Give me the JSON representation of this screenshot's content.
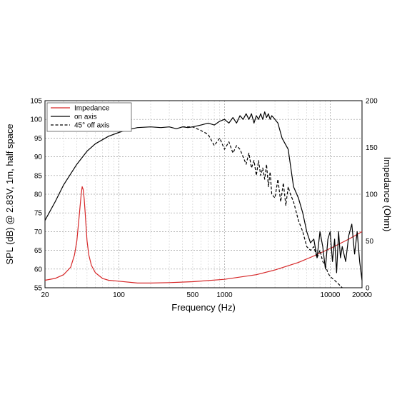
{
  "chart_data": {
    "type": "line",
    "xlabel": "Frequency (Hz)",
    "ylabel": "SPL (dB) @ 2.83V, 1m, half space",
    "y2label": "Impedance (Ohm)",
    "x_scale": "log",
    "xlim": [
      20,
      20000
    ],
    "ylim": [
      55,
      105
    ],
    "y2lim": [
      0,
      200
    ],
    "grid": true,
    "legend_position": "top-left",
    "x_ticks": [
      {
        "value": 20,
        "label": "20"
      },
      {
        "value": 100,
        "label": "100"
      },
      {
        "value": 500,
        "label": "500"
      },
      {
        "value": 1000,
        "label": "1000"
      },
      {
        "value": 10000,
        "label": "10000"
      },
      {
        "value": 20000,
        "label": "20000"
      }
    ],
    "y_ticks": [
      55,
      60,
      65,
      70,
      75,
      80,
      85,
      90,
      95,
      100,
      105
    ],
    "y2_ticks": [
      0,
      50,
      100,
      150,
      200
    ],
    "colors": {
      "impedance": "#d62728",
      "on_axis": "#000000",
      "off_axis": "#000000"
    },
    "series": [
      {
        "name": "Impedance",
        "axis": "right",
        "style": "solid",
        "color": "#d62728",
        "x": [
          20,
          25,
          30,
          35,
          38,
          40,
          42,
          44,
          45,
          46,
          47,
          48,
          50,
          52,
          55,
          60,
          70,
          80,
          100,
          150,
          200,
          300,
          500,
          1000,
          2000,
          3000,
          5000,
          7000,
          10000,
          15000,
          20000
        ],
        "y": [
          8,
          10,
          14,
          22,
          35,
          50,
          75,
          100,
          108,
          105,
          95,
          80,
          50,
          35,
          24,
          16,
          10,
          8,
          7,
          5,
          5,
          5.5,
          6.5,
          9,
          14,
          19,
          27,
          34,
          42,
          52,
          60
        ]
      },
      {
        "name": "on axis",
        "axis": "left",
        "style": "solid",
        "color": "#000000",
        "x": [
          20,
          25,
          30,
          40,
          50,
          60,
          80,
          100,
          120,
          150,
          200,
          250,
          300,
          350,
          400,
          450,
          500,
          600,
          700,
          800,
          900,
          1000,
          1100,
          1200,
          1300,
          1400,
          1500,
          1600,
          1700,
          1800,
          1900,
          2000,
          2100,
          2200,
          2300,
          2400,
          2500,
          2600,
          2700,
          2800,
          3000,
          3200,
          3500,
          4000,
          4500,
          5000,
          5500,
          6000,
          6500,
          7000,
          7500,
          8000,
          8500,
          9000,
          9500,
          10000,
          10500,
          11000,
          11500,
          12000,
          12500,
          13000,
          14000,
          15000,
          16000,
          17000,
          18000,
          19000,
          20000
        ],
        "y": [
          73,
          78,
          82.5,
          88,
          91.5,
          93.5,
          95.5,
          96.5,
          97.2,
          97.8,
          98,
          97.8,
          98,
          97.5,
          98,
          97.8,
          98,
          98.5,
          99,
          98.5,
          99.5,
          100,
          99,
          100.5,
          99,
          101,
          100,
          101.5,
          100,
          101.5,
          99,
          101,
          100,
          101.5,
          100,
          102,
          100.5,
          101.5,
          100,
          101,
          100,
          99,
          95,
          92,
          82,
          79,
          75,
          70,
          67,
          68,
          63,
          70,
          66,
          60,
          68,
          70,
          62,
          68,
          59,
          70,
          63,
          66,
          62,
          69,
          72,
          64,
          70,
          62,
          57
        ]
      },
      {
        "name": "45° off axis",
        "axis": "left",
        "style": "dashed",
        "color": "#000000",
        "x": [
          400,
          500,
          600,
          700,
          800,
          900,
          1000,
          1100,
          1200,
          1300,
          1400,
          1500,
          1600,
          1700,
          1800,
          1900,
          2000,
          2100,
          2200,
          2300,
          2400,
          2500,
          2600,
          2700,
          2800,
          3000,
          3200,
          3400,
          3600,
          3800,
          4000,
          4200,
          4500,
          5000,
          5500,
          6000,
          6500,
          7000,
          7500,
          8000,
          8500,
          9000,
          9500,
          10000,
          11000,
          12000,
          13000
        ],
        "y": [
          98,
          98,
          97,
          96,
          93,
          95,
          92,
          94,
          91,
          93,
          92,
          90,
          88,
          91,
          87,
          89,
          85,
          89,
          85,
          87,
          84,
          88,
          82,
          86,
          80,
          79,
          84,
          78,
          83,
          77,
          82,
          80,
          78,
          73,
          70,
          66,
          65,
          66,
          63,
          65,
          62,
          61,
          59,
          58,
          57,
          56,
          55
        ]
      }
    ]
  }
}
